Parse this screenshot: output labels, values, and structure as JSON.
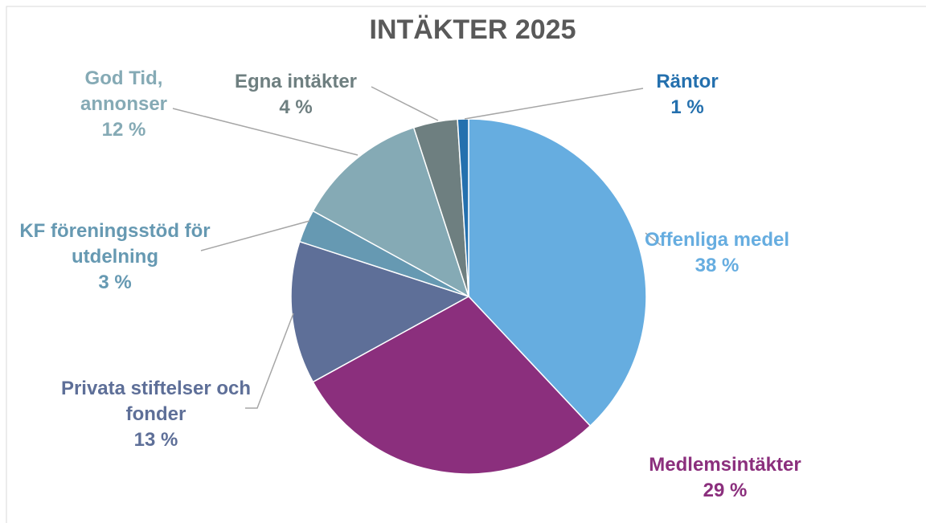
{
  "chart_data": {
    "type": "pie",
    "title": "INTÄKTER 2025",
    "categories": [
      "Offenliga medel",
      "Medlemsintäkter",
      "Privata stiftelser och fonder",
      "KF föreningsstöd för utdelning",
      "God Tid, annonser",
      "Egna intäkter",
      "Räntor"
    ],
    "values": [
      38,
      29,
      13,
      3,
      12,
      4,
      1
    ],
    "value_labels": [
      "38 %",
      "29 %",
      "13 %",
      "3 %",
      "12 %",
      "4 %",
      "1 %"
    ],
    "colors": [
      "#66ADE0",
      "#8B2F7D",
      "#5E6F98",
      "#6699B2",
      "#85AAB5",
      "#6E7F80",
      "#2470AE"
    ]
  }
}
